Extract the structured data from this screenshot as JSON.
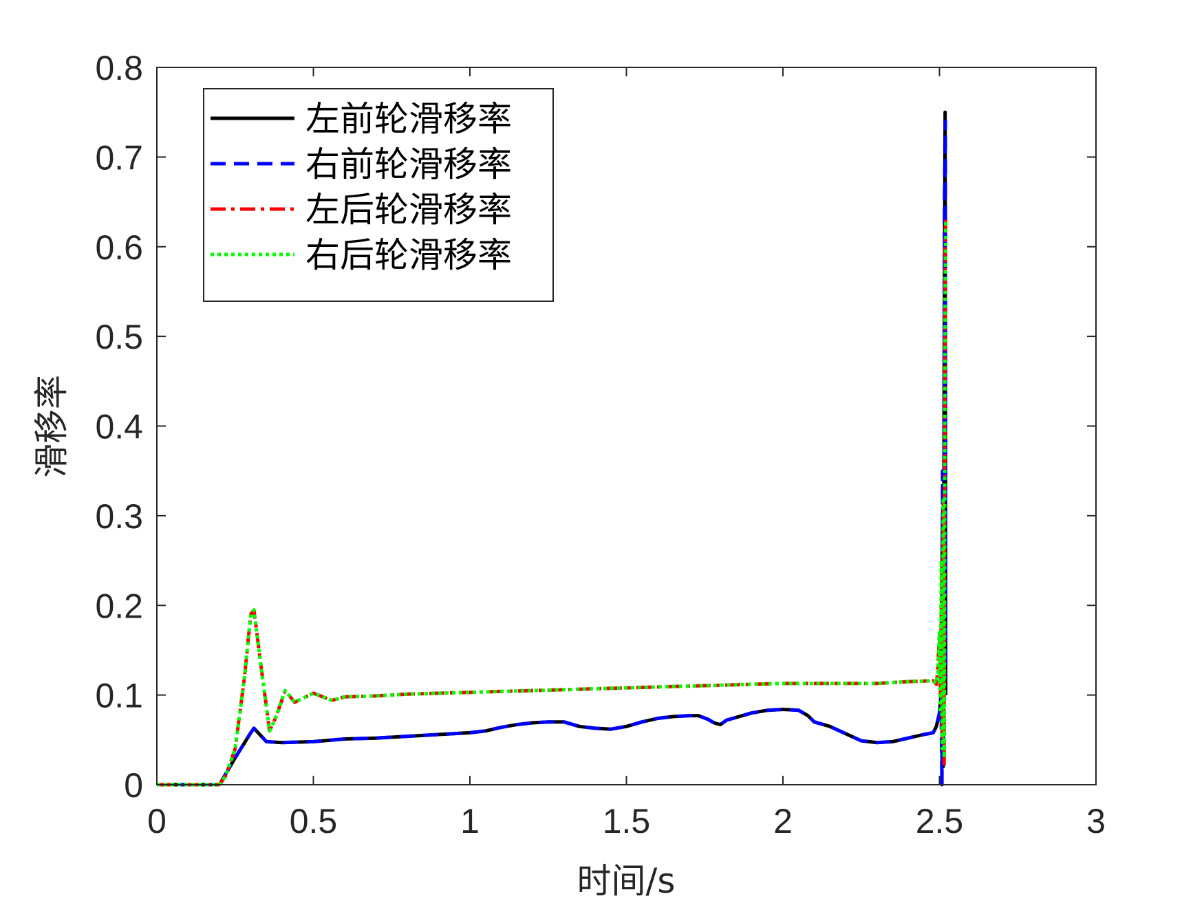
{
  "chart_data": {
    "type": "line",
    "title": "",
    "xlabel": "时间/s",
    "ylabel": "滑移率",
    "xlim": [
      0,
      3
    ],
    "ylim": [
      0,
      0.8
    ],
    "xticks": [
      0,
      0.5,
      1,
      1.5,
      2,
      2.5,
      3
    ],
    "xtick_labels": [
      "0",
      "0.5",
      "1",
      "1.5",
      "2",
      "2.5",
      "3"
    ],
    "yticks": [
      0,
      0.1,
      0.2,
      0.3,
      0.4,
      0.5,
      0.6,
      0.7,
      0.8
    ],
    "ytick_labels": [
      "0",
      "0.1",
      "0.2",
      "0.3",
      "0.4",
      "0.5",
      "0.6",
      "0.7",
      "0.8"
    ],
    "grid": false,
    "legend_position": "top-left",
    "series": [
      {
        "name": "左前轮滑移率",
        "color": "#000000",
        "style": "solid",
        "x": [
          0,
          0.1,
          0.2,
          0.25,
          0.3,
          0.31,
          0.35,
          0.4,
          0.5,
          0.6,
          0.7,
          0.8,
          0.9,
          1.0,
          1.05,
          1.1,
          1.15,
          1.2,
          1.25,
          1.3,
          1.32,
          1.35,
          1.4,
          1.45,
          1.5,
          1.55,
          1.6,
          1.65,
          1.7,
          1.73,
          1.76,
          1.78,
          1.8,
          1.82,
          1.85,
          1.9,
          1.95,
          2.0,
          2.05,
          2.08,
          2.1,
          2.13,
          2.15,
          2.2,
          2.25,
          2.3,
          2.35,
          2.4,
          2.45,
          2.48,
          2.49,
          2.5,
          2.505,
          2.51,
          2.512,
          2.515,
          2.518,
          2.52
        ],
        "y": [
          0,
          0,
          0,
          0.03,
          0.058,
          0.063,
          0.048,
          0.047,
          0.048,
          0.051,
          0.052,
          0.054,
          0.056,
          0.058,
          0.06,
          0.064,
          0.067,
          0.069,
          0.07,
          0.07,
          0.068,
          0.065,
          0.063,
          0.062,
          0.065,
          0.07,
          0.074,
          0.076,
          0.077,
          0.077,
          0.073,
          0.069,
          0.067,
          0.072,
          0.075,
          0.08,
          0.083,
          0.084,
          0.083,
          0.077,
          0.07,
          0.067,
          0.065,
          0.057,
          0.049,
          0.047,
          0.048,
          0.052,
          0.056,
          0.058,
          0.065,
          0.08,
          0.1,
          0.3,
          0.02,
          0.45,
          0.75,
          0.1
        ]
      },
      {
        "name": "右前轮滑移率",
        "color": "#0000ff",
        "style": "dashed",
        "x": [
          0,
          0.1,
          0.2,
          0.25,
          0.3,
          0.31,
          0.35,
          0.4,
          0.5,
          0.6,
          0.7,
          0.8,
          0.9,
          1.0,
          1.05,
          1.1,
          1.15,
          1.2,
          1.25,
          1.3,
          1.32,
          1.35,
          1.4,
          1.45,
          1.5,
          1.55,
          1.6,
          1.65,
          1.7,
          1.73,
          1.76,
          1.78,
          1.8,
          1.82,
          1.85,
          1.9,
          1.95,
          2.0,
          2.05,
          2.08,
          2.1,
          2.13,
          2.15,
          2.2,
          2.25,
          2.3,
          2.35,
          2.4,
          2.45,
          2.48,
          2.49,
          2.5,
          2.505,
          2.508,
          2.51,
          2.513,
          2.516,
          2.519,
          2.52
        ],
        "y": [
          0,
          0,
          0,
          0.03,
          0.058,
          0.063,
          0.048,
          0.047,
          0.048,
          0.051,
          0.052,
          0.054,
          0.056,
          0.058,
          0.06,
          0.064,
          0.067,
          0.069,
          0.07,
          0.07,
          0.068,
          0.065,
          0.063,
          0.062,
          0.065,
          0.07,
          0.074,
          0.076,
          0.077,
          0.077,
          0.073,
          0.069,
          0.067,
          0.072,
          0.075,
          0.08,
          0.083,
          0.084,
          0.083,
          0.077,
          0.07,
          0.067,
          0.065,
          0.057,
          0.049,
          0.047,
          0.048,
          0.052,
          0.056,
          0.058,
          0.065,
          0.08,
          0.1,
          0.0,
          0.35,
          0.05,
          0.65,
          0.74,
          0.12
        ]
      },
      {
        "name": "左后轮滑移率",
        "color": "#ff0000",
        "style": "dashdot",
        "x": [
          0,
          0.1,
          0.2,
          0.22,
          0.25,
          0.28,
          0.3,
          0.31,
          0.33,
          0.36,
          0.38,
          0.41,
          0.44,
          0.47,
          0.5,
          0.53,
          0.56,
          0.6,
          0.7,
          0.8,
          0.9,
          1.0,
          1.2,
          1.4,
          1.6,
          1.8,
          2.0,
          2.2,
          2.3,
          2.4,
          2.48,
          2.49,
          2.495,
          2.5,
          2.503,
          2.506,
          2.509,
          2.512,
          2.515,
          2.518,
          2.52
        ],
        "y": [
          0,
          0,
          0,
          0.01,
          0.04,
          0.12,
          0.19,
          0.195,
          0.14,
          0.06,
          0.075,
          0.105,
          0.092,
          0.097,
          0.102,
          0.098,
          0.094,
          0.098,
          0.099,
          0.101,
          0.102,
          0.103,
          0.105,
          0.107,
          0.109,
          0.111,
          0.113,
          0.113,
          0.113,
          0.115,
          0.116,
          0.112,
          0.13,
          0.17,
          0.1,
          0.2,
          0.05,
          0.32,
          0.02,
          0.6,
          0.63
        ]
      },
      {
        "name": "右后轮滑移率",
        "color": "#00ff00",
        "style": "dotted",
        "x": [
          0,
          0.1,
          0.2,
          0.22,
          0.25,
          0.28,
          0.3,
          0.31,
          0.33,
          0.36,
          0.38,
          0.41,
          0.44,
          0.47,
          0.5,
          0.53,
          0.56,
          0.6,
          0.7,
          0.8,
          0.9,
          1.0,
          1.2,
          1.4,
          1.6,
          1.8,
          2.0,
          2.2,
          2.3,
          2.4,
          2.48,
          2.49,
          2.495,
          2.5,
          2.503,
          2.506,
          2.509,
          2.512,
          2.515,
          2.518,
          2.52
        ],
        "y": [
          0,
          0,
          0,
          0.01,
          0.04,
          0.12,
          0.19,
          0.195,
          0.14,
          0.06,
          0.075,
          0.105,
          0.092,
          0.097,
          0.102,
          0.098,
          0.094,
          0.098,
          0.099,
          0.101,
          0.102,
          0.103,
          0.105,
          0.107,
          0.109,
          0.111,
          0.113,
          0.113,
          0.113,
          0.115,
          0.116,
          0.113,
          0.125,
          0.17,
          0.08,
          0.25,
          0.04,
          0.32,
          0.03,
          0.55,
          0.63
        ]
      }
    ]
  }
}
